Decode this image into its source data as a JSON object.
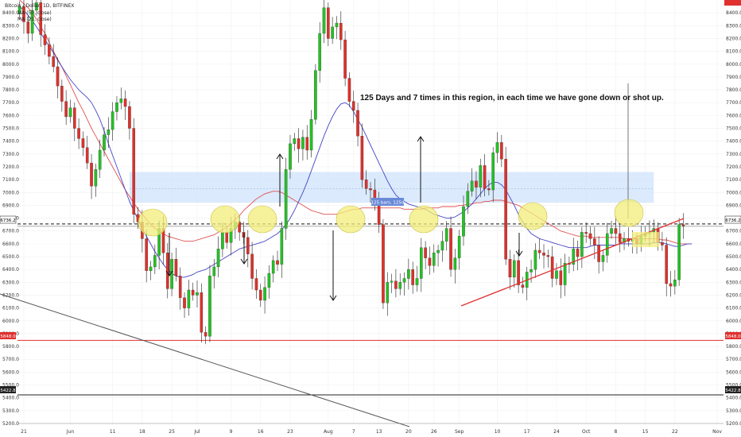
{
  "header": {
    "symbol_line": "Bitcoin / Dollar, 1D, BITFINEX",
    "ma1": "MA (50, close)",
    "ma2": "MA (21, close)"
  },
  "annotation": {
    "text": "125 Days and 7 times in this region, in each time we have gone down or shot up.",
    "range_label": "125 bars, 125d"
  },
  "price_tags": {
    "current": "6736.2",
    "support": "5848.0",
    "low": "5422.8"
  },
  "colors": {
    "up": "#22c322",
    "down": "#e0302a",
    "ma_fast": "#4444c8",
    "ma_slow": "#e05050",
    "zone": "#cfe3fb",
    "circle": "#f3ee7a",
    "support_line": "#e03030"
  },
  "chart_data": {
    "type": "candlestick",
    "title": "Bitcoin / Dollar, 1D, BITFINEX",
    "ylim": [
      5200,
      8500
    ],
    "yticks": [
      5200,
      5300,
      5400,
      5500,
      5600,
      5700,
      5800,
      5900,
      6000,
      6100,
      6200,
      6300,
      6400,
      6500,
      6600,
      6700,
      6800,
      6900,
      7000,
      7100,
      7200,
      7300,
      7400,
      7500,
      7600,
      7700,
      7800,
      7900,
      8000,
      8100,
      8200,
      8300,
      8400
    ],
    "x_start": "2018-05-20",
    "x_end": "2018-11-03",
    "xticks": [
      {
        "date": "2018-05-21",
        "label": "21"
      },
      {
        "date": "2018-06-01",
        "label": "Jun"
      },
      {
        "date": "2018-06-11",
        "label": "11"
      },
      {
        "date": "2018-06-18",
        "label": "18"
      },
      {
        "date": "2018-06-25",
        "label": "25"
      },
      {
        "date": "2018-07-01",
        "label": "Jul"
      },
      {
        "date": "2018-07-09",
        "label": "9"
      },
      {
        "date": "2018-07-16",
        "label": "16"
      },
      {
        "date": "2018-07-23",
        "label": "23"
      },
      {
        "date": "2018-08-01",
        "label": "Aug"
      },
      {
        "date": "2018-08-07",
        "label": "7"
      },
      {
        "date": "2018-08-13",
        "label": "13"
      },
      {
        "date": "2018-08-20",
        "label": "20"
      },
      {
        "date": "2018-08-26",
        "label": "26"
      },
      {
        "date": "2018-09-01",
        "label": "Sep"
      },
      {
        "date": "2018-09-10",
        "label": "10"
      },
      {
        "date": "2018-09-17",
        "label": "17"
      },
      {
        "date": "2018-09-24",
        "label": "24"
      },
      {
        "date": "2018-10-01",
        "label": "Oct"
      },
      {
        "date": "2018-10-08",
        "label": "8"
      },
      {
        "date": "2018-10-15",
        "label": "15"
      },
      {
        "date": "2018-10-22",
        "label": "22"
      },
      {
        "date": "2018-11-01",
        "label": "Nov"
      }
    ],
    "close": [
      8450,
      8330,
      8240,
      8420,
      8480,
      8230,
      8150,
      8060,
      7980,
      7830,
      7710,
      7590,
      7660,
      7500,
      7420,
      7350,
      7230,
      7050,
      7180,
      7330,
      7450,
      7490,
      7630,
      7700,
      7730,
      7670,
      7500,
      6830,
      6770,
      6640,
      6390,
      6420,
      6510,
      6720,
      6530,
      6250,
      6480,
      6350,
      6180,
      6100,
      6240,
      6200,
      6220,
      5910,
      5880,
      6350,
      6420,
      6560,
      6690,
      6610,
      6720,
      6770,
      6690,
      6650,
      6520,
      6330,
      6240,
      6160,
      6260,
      6370,
      6470,
      6440,
      6720,
      7180,
      7380,
      7420,
      7340,
      7430,
      7330,
      7570,
      7950,
      8240,
      8440,
      8200,
      8290,
      8320,
      8190,
      7890,
      7710,
      7640,
      7440,
      7100,
      7030,
      7020,
      6940,
      6750,
      6140,
      6300,
      6310,
      6250,
      6300,
      6330,
      6400,
      6280,
      6330,
      6570,
      6490,
      6430,
      6530,
      6550,
      6620,
      6720,
      6400,
      6490,
      6660,
      6890,
      7010,
      7090,
      7040,
      7210,
      7030,
      7020,
      7310,
      7390,
      7260,
      6480,
      6340,
      6470,
      6280,
      6260,
      6380,
      6400,
      6550,
      6530,
      6510,
      6500,
      6330,
      6390,
      6280,
      6450,
      6440,
      6560,
      6500,
      6690,
      6680,
      6640,
      6590,
      6460,
      6510,
      6680,
      6720,
      6680,
      6610,
      6640,
      6620,
      6640,
      6600,
      6660,
      6680,
      6690,
      6720,
      6610,
      6590,
      6290,
      6270,
      6320,
      6750,
      6740
    ],
    "series": [
      {
        "name": "MA (50, close)",
        "values": [
          8500,
          8470,
          8440,
          8400,
          8350,
          8290,
          8240,
          8170,
          8100,
          8040,
          7980,
          7910,
          7840,
          7770,
          7700,
          7640,
          7570,
          7500,
          7440,
          7380,
          7320,
          7260,
          7200,
          7140,
          7080,
          7020,
          6970,
          6920,
          6870,
          6830,
          6790,
          6750,
          6720,
          6700,
          6680,
          6660,
          6650,
          6640,
          6630,
          6620,
          6620,
          6620,
          6630,
          6640,
          6650,
          6660,
          6670,
          6690,
          6710,
          6730,
          6760,
          6790,
          6820,
          6860,
          6890,
          6920,
          6950,
          6970,
          6990,
          7000,
          7010,
          7010,
          7000,
          6980,
          6960,
          6940,
          6920,
          6900,
          6880,
          6860,
          6850,
          6840,
          6830,
          6830,
          6830,
          6830,
          6840,
          6850,
          6860,
          6870,
          6870,
          6880,
          6880,
          6880,
          6880,
          6880,
          6880,
          6880,
          6880,
          6880,
          6880,
          6870,
          6870,
          6870,
          6870,
          6870,
          6880,
          6880,
          6880,
          6880,
          6890,
          6890,
          6890,
          6890,
          6900,
          6900,
          6910,
          6910,
          6920,
          6920,
          6930,
          6930,
          6940,
          6940,
          6940,
          6930,
          6920,
          6910,
          6900,
          6880,
          6860,
          6840,
          6820,
          6800,
          6780,
          6760,
          6740,
          6720,
          6700,
          6690,
          6680,
          6670,
          6660,
          6660,
          6660,
          6650,
          6650,
          6650,
          6650,
          6650,
          6650,
          6650,
          6650,
          6640,
          6640,
          6640,
          6640,
          6640,
          6640,
          6640,
          6640,
          6640,
          6630,
          6630,
          6620,
          6610,
          6600,
          6600,
          6600,
          6600
        ]
      },
      {
        "name": "MA (21, close)",
        "values": [
          8450,
          8420,
          8380,
          8340,
          8290,
          8240,
          8190,
          8140,
          8090,
          8030,
          7980,
          7930,
          7880,
          7840,
          7800,
          7770,
          7740,
          7700,
          7640,
          7570,
          7480,
          7380,
          7290,
          7200,
          7110,
          7020,
          6930,
          6860,
          6790,
          6720,
          6660,
          6600,
          6540,
          6490,
          6440,
          6400,
          6370,
          6350,
          6340,
          6340,
          6350,
          6360,
          6380,
          6390,
          6400,
          6420,
          6440,
          6460,
          6480,
          6500,
          6520,
          6540,
          6560,
          6570,
          6580,
          6590,
          6600,
          6610,
          6620,
          6640,
          6660,
          6680,
          6710,
          6750,
          6800,
          6860,
          6930,
          7000,
          7080,
          7170,
          7260,
          7350,
          7440,
          7520,
          7590,
          7650,
          7690,
          7700,
          7680,
          7630,
          7570,
          7510,
          7440,
          7370,
          7300,
          7230,
          7160,
          7090,
          7030,
          6980,
          6950,
          6930,
          6910,
          6900,
          6890,
          6880,
          6870,
          6850,
          6830,
          6820,
          6810,
          6800,
          6800,
          6810,
          6830,
          6850,
          6880,
          6910,
          6950,
          6990,
          7030,
          7060,
          7080,
          7080,
          7060,
          7020,
          6960,
          6900,
          6830,
          6770,
          6720,
          6680,
          6660,
          6640,
          6630,
          6620,
          6610,
          6600,
          6590,
          6580,
          6570,
          6570,
          6570,
          6570,
          6570,
          6580,
          6590,
          6590,
          6590,
          6590,
          6590,
          6590,
          6600,
          6600,
          6600,
          6600,
          6600,
          6600,
          6600,
          6600,
          6610,
          6610,
          6610,
          6600,
          6590,
          6580,
          6580,
          6590,
          6600,
          6600
        ]
      }
    ],
    "levels": [
      {
        "name": "resistance",
        "value": 6736.2
      },
      {
        "name": "support",
        "value": 5848.0
      },
      {
        "name": "low",
        "value": 5422.8
      }
    ]
  }
}
